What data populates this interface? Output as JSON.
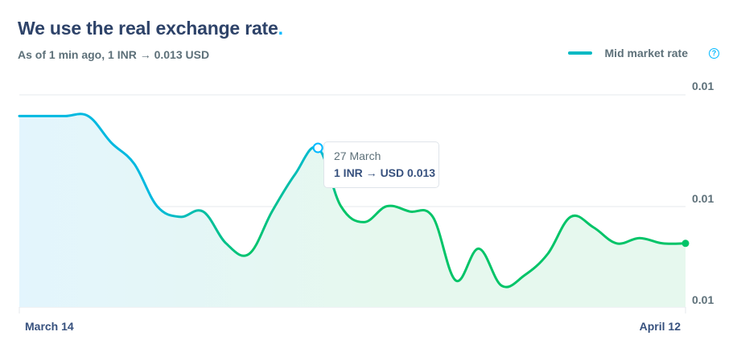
{
  "header": {
    "title": "We use the real exchange rate",
    "title_dot": ".",
    "subtitle": "As of 1 min ago, 1 INR → 0.013 USD"
  },
  "legend": {
    "label": "Mid market rate",
    "help_glyph": "?"
  },
  "tooltip": {
    "date": "27 March",
    "value": "1 INR → USD 0.013"
  },
  "colors": {
    "line": "#00c468",
    "line_start": "#00b9e0",
    "fill_start": "#e3f5fd",
    "fill_end": "#e6f8ee",
    "grid": "#e6e9ee",
    "end_dot": "#00c468",
    "hover_circle": "#00b9ff"
  },
  "icons": {
    "help": "help-circle-icon"
  },
  "chart_data": {
    "type": "area",
    "title": "",
    "xlabel": "",
    "ylabel": "",
    "x_tick_labels": [
      "March 14",
      "April 12"
    ],
    "y_tick_labels": [
      "0.01",
      "0.01",
      "0.01"
    ],
    "ylim": [
      0.01295,
      0.01335
    ],
    "grid": true,
    "legend_position": "top-right",
    "series": [
      {
        "name": "Mid market rate",
        "x": [
          "March 14",
          "March 15",
          "March 16",
          "March 17",
          "March 18",
          "March 19",
          "March 20",
          "March 21",
          "March 22",
          "March 23",
          "March 24",
          "March 25",
          "March 26",
          "March 27",
          "March 28",
          "March 29",
          "March 30",
          "March 31",
          "April 1",
          "April 2",
          "April 3",
          "April 4",
          "April 5",
          "April 6",
          "April 7",
          "April 8",
          "April 9",
          "April 10",
          "April 11",
          "April 12"
        ],
        "values": [
          0.01331,
          0.01331,
          0.01331,
          0.01331,
          0.01326,
          0.01322,
          0.01314,
          0.01312,
          0.01313,
          0.01307,
          0.01305,
          0.01313,
          0.0132,
          0.01325,
          0.01314,
          0.01311,
          0.01314,
          0.01313,
          0.01312,
          0.013,
          0.01306,
          0.01299,
          0.01301,
          0.01305,
          0.01312,
          0.0131,
          0.01307,
          0.01308,
          0.01307,
          0.01307
        ]
      }
    ],
    "hover_point": {
      "x": "March 27",
      "value": 0.013
    }
  }
}
